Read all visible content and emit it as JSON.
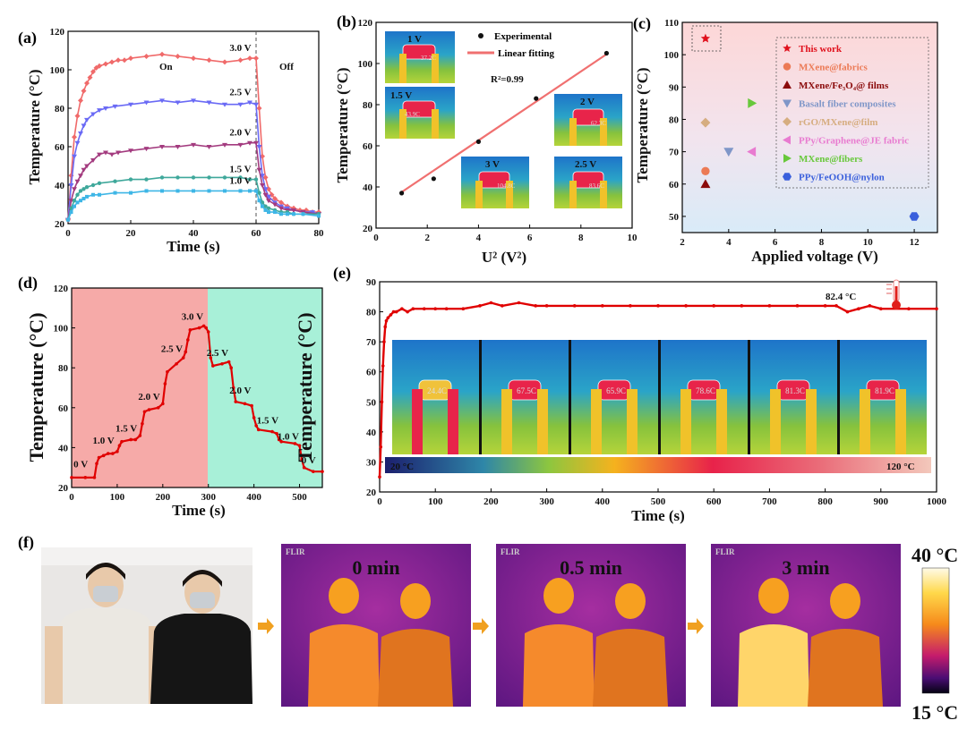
{
  "chart_data": [
    {
      "panel": "(a)",
      "type": "line",
      "xlabel": "Time (s)",
      "ylabel": "Temperature (°C)",
      "xlim": [
        0,
        80
      ],
      "ylim": [
        20,
        120
      ],
      "xticks": [
        0,
        20,
        40,
        60,
        80
      ],
      "yticks": [
        20,
        40,
        60,
        80,
        100,
        120
      ],
      "annotations": [
        "On",
        "Off"
      ],
      "series": [
        {
          "name": "3.0 V",
          "color": "#f06a6a",
          "x": [
            0,
            1,
            2,
            3,
            4,
            5,
            6,
            7,
            8,
            9,
            10,
            12,
            14,
            16,
            18,
            20,
            25,
            30,
            35,
            40,
            45,
            50,
            55,
            58,
            60,
            61,
            62,
            63,
            64,
            65,
            66,
            68,
            70,
            72,
            74,
            76,
            78,
            80
          ],
          "y": [
            22,
            45,
            65,
            76,
            84,
            89,
            93,
            96,
            99,
            101,
            102,
            103,
            104,
            105,
            105,
            106,
            107,
            108,
            107,
            106,
            105,
            104,
            105,
            106,
            106,
            80,
            55,
            44,
            38,
            35,
            33,
            31,
            29,
            28,
            27,
            27,
            26,
            26
          ]
        },
        {
          "name": "2.5 V",
          "color": "#6a6af5",
          "x": [
            0,
            1,
            2,
            3,
            4,
            5,
            6,
            8,
            10,
            12,
            15,
            20,
            25,
            30,
            35,
            40,
            45,
            50,
            55,
            58,
            60,
            61,
            62,
            63,
            64,
            66,
            68,
            70,
            72,
            75,
            78,
            80
          ],
          "y": [
            22,
            40,
            55,
            62,
            67,
            71,
            74,
            77,
            79,
            80,
            81,
            82,
            83,
            84,
            83,
            84,
            83,
            82,
            82,
            83,
            82,
            60,
            45,
            38,
            34,
            31,
            29,
            28,
            27,
            26,
            26,
            25
          ]
        },
        {
          "name": "2.0 V",
          "color": "#a33b7f",
          "x": [
            0,
            1,
            2,
            3,
            4,
            5,
            6,
            8,
            10,
            12,
            14,
            16,
            20,
            25,
            30,
            35,
            40,
            45,
            50,
            55,
            58,
            60,
            61,
            62,
            63,
            64,
            66,
            68,
            70,
            72,
            75,
            80
          ],
          "y": [
            22,
            32,
            38,
            42,
            45,
            48,
            50,
            53,
            56,
            57,
            56,
            57,
            58,
            59,
            60,
            60,
            61,
            60,
            61,
            61,
            62,
            62,
            48,
            40,
            35,
            32,
            30,
            28,
            27,
            27,
            26,
            25
          ]
        },
        {
          "name": "1.5 V",
          "color": "#3fa89b",
          "x": [
            0,
            1,
            2,
            3,
            4,
            5,
            6,
            8,
            10,
            15,
            20,
            25,
            30,
            35,
            40,
            45,
            50,
            55,
            58,
            60,
            61,
            62,
            63,
            64,
            66,
            68,
            70,
            72,
            75,
            80
          ],
          "y": [
            22,
            28,
            32,
            35,
            37,
            38,
            39,
            40,
            41,
            42,
            43,
            43,
            44,
            44,
            44,
            44,
            44,
            44,
            43,
            43,
            36,
            31,
            29,
            28,
            27,
            26,
            26,
            25,
            25,
            25
          ]
        },
        {
          "name": "1.0 V",
          "color": "#3eb6e6",
          "x": [
            0,
            1,
            2,
            3,
            4,
            5,
            6,
            8,
            10,
            15,
            20,
            25,
            30,
            35,
            40,
            45,
            50,
            55,
            58,
            60,
            61,
            62,
            63,
            64,
            66,
            68,
            70,
            72,
            75,
            80
          ],
          "y": [
            22,
            26,
            29,
            31,
            32,
            33,
            34,
            35,
            35,
            36,
            36,
            37,
            37,
            37,
            37,
            37,
            37,
            37,
            37,
            37,
            32,
            29,
            27,
            26,
            26,
            25,
            25,
            25,
            25,
            24
          ]
        }
      ]
    },
    {
      "panel": "(b)",
      "type": "scatter",
      "xlabel": "U² (V²)",
      "ylabel": "Temperature (°C)",
      "xlim": [
        0,
        10
      ],
      "ylim": [
        20,
        120
      ],
      "xticks": [
        0,
        2,
        4,
        6,
        8,
        10
      ],
      "yticks": [
        20,
        40,
        60,
        80,
        100,
        120
      ],
      "legend": [
        "Experimental",
        "Linear fitting"
      ],
      "annotation": "R²=0.99",
      "x": [
        1,
        2.25,
        4,
        6.25,
        9
      ],
      "y": [
        37,
        44,
        62,
        83,
        105
      ],
      "fit": [
        [
          1,
          37.5
        ],
        [
          9,
          104.5
        ]
      ],
      "insets": [
        {
          "label": "1 V",
          "reading": "37.2C"
        },
        {
          "label": "1.5 V",
          "reading": "43.9C"
        },
        {
          "label": "2 V",
          "reading": "62.3C"
        },
        {
          "label": "3 V",
          "reading": "104.8C"
        },
        {
          "label": "2.5 V",
          "reading": "83.6C"
        }
      ]
    },
    {
      "panel": "(c)",
      "type": "scatter",
      "xlabel": "Applied voltage (V)",
      "ylabel": "Temperature (°C)",
      "xlim": [
        2,
        13
      ],
      "ylim": [
        45,
        110
      ],
      "xticks": [
        2,
        4,
        6,
        8,
        10,
        12
      ],
      "yticks": [
        50,
        60,
        70,
        80,
        90,
        100,
        110
      ],
      "series": [
        {
          "name": "This work",
          "color": "#e0101c",
          "marker": "star",
          "points": [
            [
              3,
              105
            ]
          ]
        },
        {
          "name": "MXene@fabrics",
          "color": "#ec7a55",
          "marker": "circle",
          "points": [
            [
              3,
              64
            ]
          ]
        },
        {
          "name": "MXene/Fe₃O₄@ films",
          "color": "#8b0b0b",
          "marker": "triangle-up",
          "points": [
            [
              3,
              60
            ]
          ]
        },
        {
          "name": "Basalt fiber composites",
          "color": "#7f96c8",
          "marker": "triangle-down",
          "points": [
            [
              4,
              70
            ]
          ]
        },
        {
          "name": "rGO/MXene@film",
          "color": "#d6ad80",
          "marker": "diamond",
          "points": [
            [
              3,
              79
            ]
          ]
        },
        {
          "name": "PPy/Graphene@JE fabric",
          "color": "#e87bd0",
          "marker": "triangle-left",
          "points": [
            [
              5,
              70
            ]
          ]
        },
        {
          "name": "MXene@fibers",
          "color": "#68c83b",
          "marker": "triangle-right",
          "points": [
            [
              5,
              85
            ]
          ]
        },
        {
          "name": "PPy/FeOOH@nylon",
          "color": "#3a5fdc",
          "marker": "hexagon",
          "points": [
            [
              12,
              50
            ]
          ]
        }
      ]
    },
    {
      "panel": "(d)",
      "type": "line",
      "xlabel": "Time (s)",
      "ylabel": "Temperature (°C)",
      "ylabel_right": "Temperature (°C)",
      "xlim": [
        0,
        550
      ],
      "ylim": [
        20,
        120
      ],
      "xticks": [
        0,
        100,
        200,
        300,
        400,
        500
      ],
      "yticks": [
        20,
        40,
        60,
        80,
        100,
        120
      ],
      "color": "#e00000",
      "x": [
        0,
        30,
        50,
        55,
        60,
        70,
        80,
        90,
        100,
        105,
        110,
        130,
        140,
        150,
        155,
        160,
        170,
        190,
        200,
        205,
        210,
        230,
        245,
        250,
        255,
        260,
        280,
        290,
        295,
        300,
        305,
        310,
        330,
        345,
        350,
        355,
        360,
        380,
        395,
        400,
        405,
        410,
        440,
        450,
        455,
        460,
        490,
        500,
        505,
        510,
        530,
        550
      ],
      "y": [
        25,
        25,
        25,
        32,
        35,
        36,
        37,
        37,
        38,
        41,
        43,
        44,
        44,
        46,
        52,
        58,
        59,
        60,
        62,
        72,
        78,
        82,
        85,
        88,
        94,
        99,
        100,
        101,
        100,
        98,
        85,
        81,
        82,
        83,
        80,
        70,
        63,
        62,
        61,
        55,
        51,
        49,
        48,
        47,
        44,
        43,
        42,
        41,
        34,
        30,
        28,
        28
      ],
      "labels": [
        {
          "text": "0 V",
          "x": 20,
          "y": 30
        },
        {
          "text": "1.0 V",
          "x": 70,
          "y": 42
        },
        {
          "text": "1.5 V",
          "x": 120,
          "y": 48
        },
        {
          "text": "2.0 V",
          "x": 170,
          "y": 64
        },
        {
          "text": "2.5 V",
          "x": 220,
          "y": 88
        },
        {
          "text": "3.0 V",
          "x": 265,
          "y": 104
        },
        {
          "text": "2.5 V",
          "x": 320,
          "y": 86
        },
        {
          "text": "2.0 V",
          "x": 370,
          "y": 67
        },
        {
          "text": "1.5 V",
          "x": 430,
          "y": 52
        },
        {
          "text": "1.0 V",
          "x": 475,
          "y": 44
        },
        {
          "text": "0 V",
          "x": 520,
          "y": 32
        }
      ]
    },
    {
      "panel": "(e)",
      "type": "line",
      "xlabel": "Time (s)",
      "ylabel": "",
      "xlim": [
        0,
        1000
      ],
      "ylim": [
        20,
        90
      ],
      "xticks": [
        0,
        100,
        200,
        300,
        400,
        500,
        600,
        700,
        800,
        900,
        1000
      ],
      "yticks": [
        20,
        30,
        40,
        50,
        60,
        70,
        80,
        90
      ],
      "color": "#e00000",
      "x": [
        0,
        2,
        4,
        6,
        8,
        10,
        12,
        15,
        20,
        25,
        30,
        40,
        50,
        60,
        80,
        100,
        120,
        150,
        180,
        200,
        220,
        250,
        280,
        300,
        350,
        400,
        450,
        500,
        550,
        600,
        650,
        700,
        750,
        800,
        820,
        840,
        860,
        880,
        900,
        950,
        1000
      ],
      "y": [
        25,
        35,
        50,
        62,
        70,
        75,
        77,
        78,
        79,
        80,
        80,
        81,
        80,
        81,
        81,
        81,
        81,
        81,
        82,
        83,
        82,
        83,
        82,
        82,
        82,
        82,
        82,
        82,
        82,
        82,
        82,
        82,
        82,
        82,
        82,
        80,
        81,
        82,
        81,
        81,
        81
      ],
      "annotation": "82.4 °C",
      "colorbar_labels": [
        "20 °C",
        "120 °C"
      ],
      "thermal_frames": [
        "24.4C",
        "67.5C",
        "65.9C",
        "78.6C",
        "81.3C",
        "81.9C"
      ]
    }
  ],
  "panel_f": {
    "label": "(f)",
    "frames": [
      {
        "time": "0 min",
        "brand": "FLIR"
      },
      {
        "time": "0.5 min",
        "brand": "FLIR"
      },
      {
        "time": "3 min",
        "brand": "FLIR"
      }
    ],
    "scale_max": "40 °C",
    "scale_min": "15 °C"
  },
  "panel_labels": [
    "(a)",
    "(b)",
    "(c)",
    "(d)",
    "(e)"
  ]
}
